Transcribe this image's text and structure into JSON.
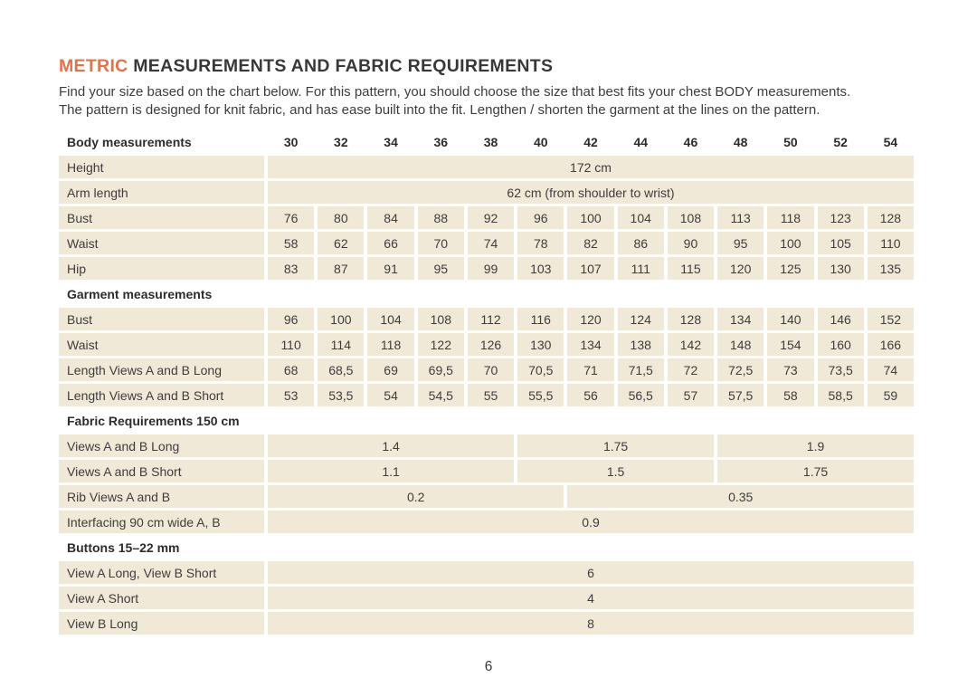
{
  "page": {
    "title_accent": "METRIC",
    "title_rest": " MEASUREMENTS AND FABRIC REQUIREMENTS",
    "intro_line1": "Find your size based on the chart below. For this pattern, you should choose the size that best fits your chest BODY measurements.",
    "intro_line2": "The pattern is designed for knit fabric, and has ease built into the fit. Lengthen / shorten the garment at the lines on the pattern.",
    "page_number": "6"
  },
  "colors": {
    "accent": "#e0744a",
    "row_background": "#f0e9d8",
    "text": "#3d3d3d"
  },
  "table": {
    "header_label": "Body measurements",
    "sizes": [
      "30",
      "32",
      "34",
      "36",
      "38",
      "40",
      "42",
      "44",
      "46",
      "48",
      "50",
      "52",
      "54"
    ],
    "rows": [
      {
        "kind": "data",
        "label": "Height",
        "cells": [
          {
            "t": "172 cm",
            "s": 13
          }
        ]
      },
      {
        "kind": "data",
        "label": "Arm length",
        "cells": [
          {
            "t": "62 cm (from shoulder to wrist)",
            "s": 13
          }
        ]
      },
      {
        "kind": "data",
        "label": "Bust",
        "cells": [
          {
            "t": "76",
            "s": 1
          },
          {
            "t": "80",
            "s": 1
          },
          {
            "t": "84",
            "s": 1
          },
          {
            "t": "88",
            "s": 1
          },
          {
            "t": "92",
            "s": 1
          },
          {
            "t": "96",
            "s": 1
          },
          {
            "t": "100",
            "s": 1
          },
          {
            "t": "104",
            "s": 1
          },
          {
            "t": "108",
            "s": 1
          },
          {
            "t": "113",
            "s": 1
          },
          {
            "t": "118",
            "s": 1
          },
          {
            "t": "123",
            "s": 1
          },
          {
            "t": "128",
            "s": 1
          }
        ]
      },
      {
        "kind": "data",
        "label": "Waist",
        "cells": [
          {
            "t": "58",
            "s": 1
          },
          {
            "t": "62",
            "s": 1
          },
          {
            "t": "66",
            "s": 1
          },
          {
            "t": "70",
            "s": 1
          },
          {
            "t": "74",
            "s": 1
          },
          {
            "t": "78",
            "s": 1
          },
          {
            "t": "82",
            "s": 1
          },
          {
            "t": "86",
            "s": 1
          },
          {
            "t": "90",
            "s": 1
          },
          {
            "t": "95",
            "s": 1
          },
          {
            "t": "100",
            "s": 1
          },
          {
            "t": "105",
            "s": 1
          },
          {
            "t": "110",
            "s": 1
          }
        ]
      },
      {
        "kind": "data",
        "label": "Hip",
        "cells": [
          {
            "t": "83",
            "s": 1
          },
          {
            "t": "87",
            "s": 1
          },
          {
            "t": "91",
            "s": 1
          },
          {
            "t": "95",
            "s": 1
          },
          {
            "t": "99",
            "s": 1
          },
          {
            "t": "103",
            "s": 1
          },
          {
            "t": "107",
            "s": 1
          },
          {
            "t": "111",
            "s": 1
          },
          {
            "t": "115",
            "s": 1
          },
          {
            "t": "120",
            "s": 1
          },
          {
            "t": "125",
            "s": 1
          },
          {
            "t": "130",
            "s": 1
          },
          {
            "t": "135",
            "s": 1
          }
        ]
      },
      {
        "kind": "section",
        "label": "Garment measurements"
      },
      {
        "kind": "data",
        "label": "Bust",
        "cells": [
          {
            "t": "96",
            "s": 1
          },
          {
            "t": "100",
            "s": 1
          },
          {
            "t": "104",
            "s": 1
          },
          {
            "t": "108",
            "s": 1
          },
          {
            "t": "112",
            "s": 1
          },
          {
            "t": "116",
            "s": 1
          },
          {
            "t": "120",
            "s": 1
          },
          {
            "t": "124",
            "s": 1
          },
          {
            "t": "128",
            "s": 1
          },
          {
            "t": "134",
            "s": 1
          },
          {
            "t": "140",
            "s": 1
          },
          {
            "t": "146",
            "s": 1
          },
          {
            "t": "152",
            "s": 1
          }
        ]
      },
      {
        "kind": "data",
        "label": "Waist",
        "cells": [
          {
            "t": "110",
            "s": 1
          },
          {
            "t": "114",
            "s": 1
          },
          {
            "t": "118",
            "s": 1
          },
          {
            "t": "122",
            "s": 1
          },
          {
            "t": "126",
            "s": 1
          },
          {
            "t": "130",
            "s": 1
          },
          {
            "t": "134",
            "s": 1
          },
          {
            "t": "138",
            "s": 1
          },
          {
            "t": "142",
            "s": 1
          },
          {
            "t": "148",
            "s": 1
          },
          {
            "t": "154",
            "s": 1
          },
          {
            "t": "160",
            "s": 1
          },
          {
            "t": "166",
            "s": 1
          }
        ]
      },
      {
        "kind": "data",
        "label": "Length Views A and B Long",
        "cells": [
          {
            "t": "68",
            "s": 1
          },
          {
            "t": "68,5",
            "s": 1
          },
          {
            "t": "69",
            "s": 1
          },
          {
            "t": "69,5",
            "s": 1
          },
          {
            "t": "70",
            "s": 1
          },
          {
            "t": "70,5",
            "s": 1
          },
          {
            "t": "71",
            "s": 1
          },
          {
            "t": "71,5",
            "s": 1
          },
          {
            "t": "72",
            "s": 1
          },
          {
            "t": "72,5",
            "s": 1
          },
          {
            "t": "73",
            "s": 1
          },
          {
            "t": "73,5",
            "s": 1
          },
          {
            "t": "74",
            "s": 1
          }
        ]
      },
      {
        "kind": "data",
        "label": "Length Views A and B Short",
        "cells": [
          {
            "t": "53",
            "s": 1
          },
          {
            "t": "53,5",
            "s": 1
          },
          {
            "t": "54",
            "s": 1
          },
          {
            "t": "54,5",
            "s": 1
          },
          {
            "t": "55",
            "s": 1
          },
          {
            "t": "55,5",
            "s": 1
          },
          {
            "t": "56",
            "s": 1
          },
          {
            "t": "56,5",
            "s": 1
          },
          {
            "t": "57",
            "s": 1
          },
          {
            "t": "57,5",
            "s": 1
          },
          {
            "t": "58",
            "s": 1
          },
          {
            "t": "58,5",
            "s": 1
          },
          {
            "t": "59",
            "s": 1
          }
        ]
      },
      {
        "kind": "section",
        "label": "Fabric Requirements 150 cm"
      },
      {
        "kind": "data",
        "label": "Views A and B Long",
        "cells": [
          {
            "t": "1.4",
            "s": 5
          },
          {
            "t": "1.75",
            "s": 4
          },
          {
            "t": "1.9",
            "s": 4
          }
        ]
      },
      {
        "kind": "data",
        "label": "Views A and B Short",
        "cells": [
          {
            "t": "1.1",
            "s": 5
          },
          {
            "t": "1.5",
            "s": 4
          },
          {
            "t": "1.75",
            "s": 4
          }
        ]
      },
      {
        "kind": "data",
        "label": "Rib Views A and B",
        "cells": [
          {
            "t": "0.2",
            "s": 6
          },
          {
            "t": "0.35",
            "s": 7
          }
        ]
      },
      {
        "kind": "data",
        "label": "Interfacing 90 cm wide A, B",
        "cells": [
          {
            "t": "0.9",
            "s": 13
          }
        ]
      },
      {
        "kind": "section",
        "label": "Buttons 15–22 mm"
      },
      {
        "kind": "data",
        "label": "View A Long, View B Short",
        "cells": [
          {
            "t": "6",
            "s": 13
          }
        ]
      },
      {
        "kind": "data",
        "label": "View A Short",
        "cells": [
          {
            "t": "4",
            "s": 13
          }
        ]
      },
      {
        "kind": "data",
        "label": "View B Long",
        "cells": [
          {
            "t": "8",
            "s": 13
          }
        ]
      }
    ]
  }
}
